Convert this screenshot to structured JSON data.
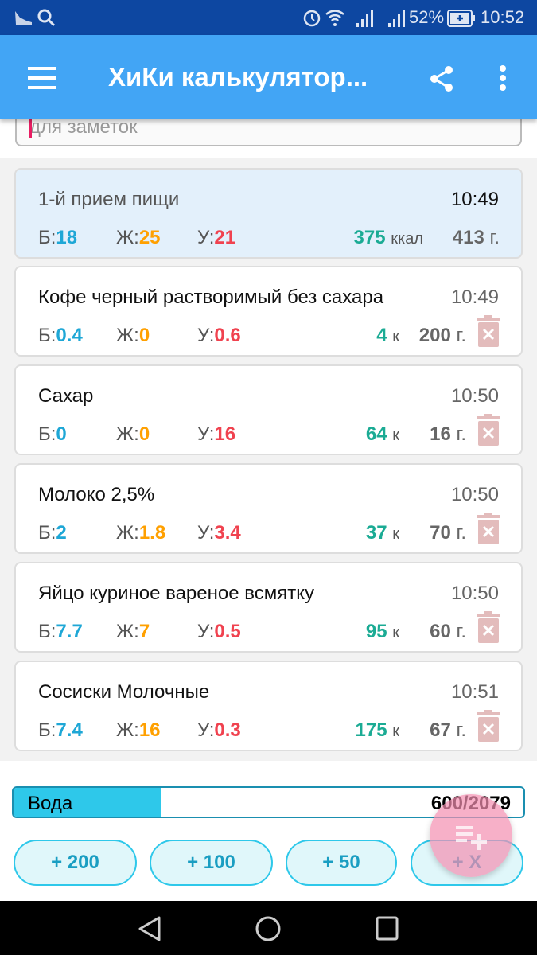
{
  "status_bar": {
    "battery": "52%",
    "time": "10:52"
  },
  "app_bar": {
    "title": "ХиКи калькулятор..."
  },
  "notes": {
    "placeholder": "для заметок"
  },
  "labels": {
    "protein": "Б:",
    "fat": "Ж:",
    "carbs": "У:",
    "kcal_full": "ккал",
    "kcal_short": "к",
    "grams": "г."
  },
  "meal_summary": {
    "name": "1-й прием пищи",
    "time": "10:49",
    "protein": "18",
    "fat": "25",
    "carbs": "21",
    "kcal": "375",
    "grams": "413"
  },
  "items": [
    {
      "name": "Кофе черный растворимый без сахара",
      "time": "10:49",
      "protein": "0.4",
      "fat": "0",
      "carbs": "0.6",
      "kcal": "4",
      "grams": "200"
    },
    {
      "name": "Сахар",
      "time": "10:50",
      "protein": "0",
      "fat": "0",
      "carbs": "16",
      "kcal": "64",
      "grams": "16"
    },
    {
      "name": "Молоко 2,5%",
      "time": "10:50",
      "protein": "2",
      "fat": "1.8",
      "carbs": "3.4",
      "kcal": "37",
      "grams": "70"
    },
    {
      "name": "Яйцо куриное вареное всмятку",
      "time": "10:50",
      "protein": "7.7",
      "fat": "7",
      "carbs": "0.5",
      "kcal": "95",
      "grams": "60"
    },
    {
      "name": "Сосиски Молочные",
      "time": "10:51",
      "protein": "7.4",
      "fat": "16",
      "carbs": "0.3",
      "kcal": "175",
      "grams": "67"
    }
  ],
  "water": {
    "label": "Вода",
    "value": "600/2079",
    "progress_percent": 28.9
  },
  "water_buttons": [
    "+ 200",
    "+ 100",
    "+ 50",
    "+ X"
  ],
  "colors": {
    "status_bar": "#0d47a1",
    "app_bar": "#42a5f5",
    "protein": "#1ea7d6",
    "fat": "#ffa000",
    "carbs": "#f0424f",
    "kcal": "#1bab94",
    "fab": "#f48fb1"
  }
}
